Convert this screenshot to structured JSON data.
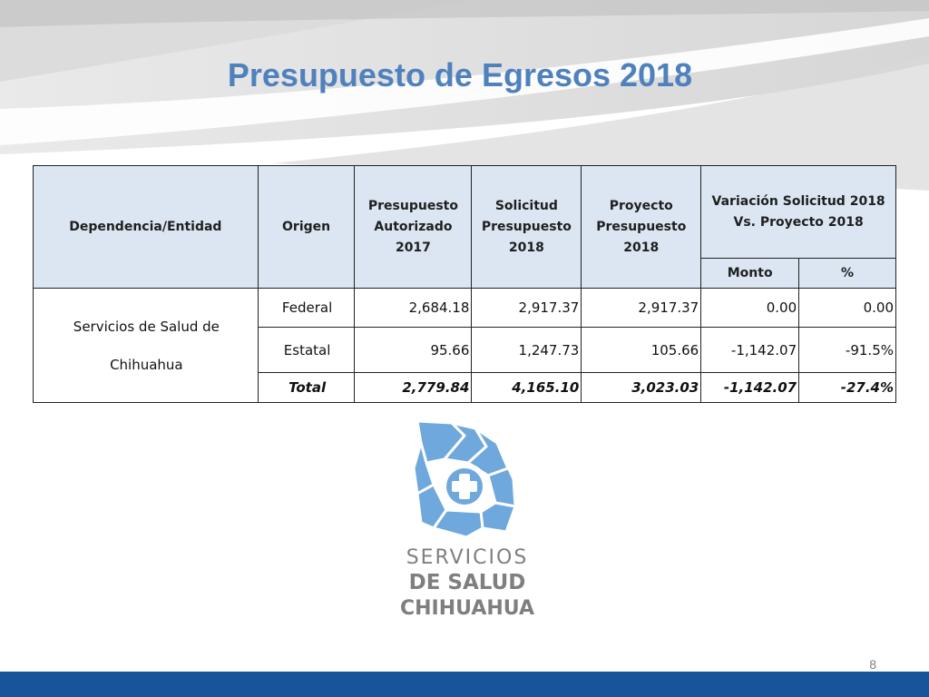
{
  "slide": {
    "title": "Presupuesto de Egresos 2018",
    "page_number": "8"
  },
  "table": {
    "headers": {
      "entity": "Dependencia/Entidad",
      "origin": "Origen",
      "authorized": "Presupuesto Autorizado 2017",
      "request": "Solicitud Presupuesto 2018",
      "project": "Proyecto Presupuesto 2018",
      "variation": "Variación Solicitud 2018 Vs. Proyecto 2018",
      "amount": "Monto",
      "percent": "%"
    },
    "entity": "Servicios de Salud de Chihuahua",
    "rows": [
      {
        "origin": "Federal",
        "authorized": "2,684.18",
        "request": "2,917.37",
        "project": "2,917.37",
        "amount": "0.00",
        "percent": "0.00"
      },
      {
        "origin": "Estatal",
        "authorized": "95.66",
        "request": "1,247.73",
        "project": "105.66",
        "amount": "-1,142.07",
        "percent": "-91.5%"
      },
      {
        "origin": "Total",
        "authorized": "2,779.84",
        "request": "4,165.10",
        "project": "3,023.03",
        "amount": "-1,142.07",
        "percent": "-27.4%"
      }
    ]
  },
  "logo": {
    "icon": "chihuahua-map-cross-icon",
    "line1": "SERVICIOS",
    "line2": "DE SALUD",
    "line3": "CHIHUAHUA",
    "color": "#6fa8dc"
  },
  "colors": {
    "title": "#4f81bd",
    "header_fill": "#dce6f2",
    "entity_text": "#1f497d",
    "footer_bar": "#17549a"
  }
}
